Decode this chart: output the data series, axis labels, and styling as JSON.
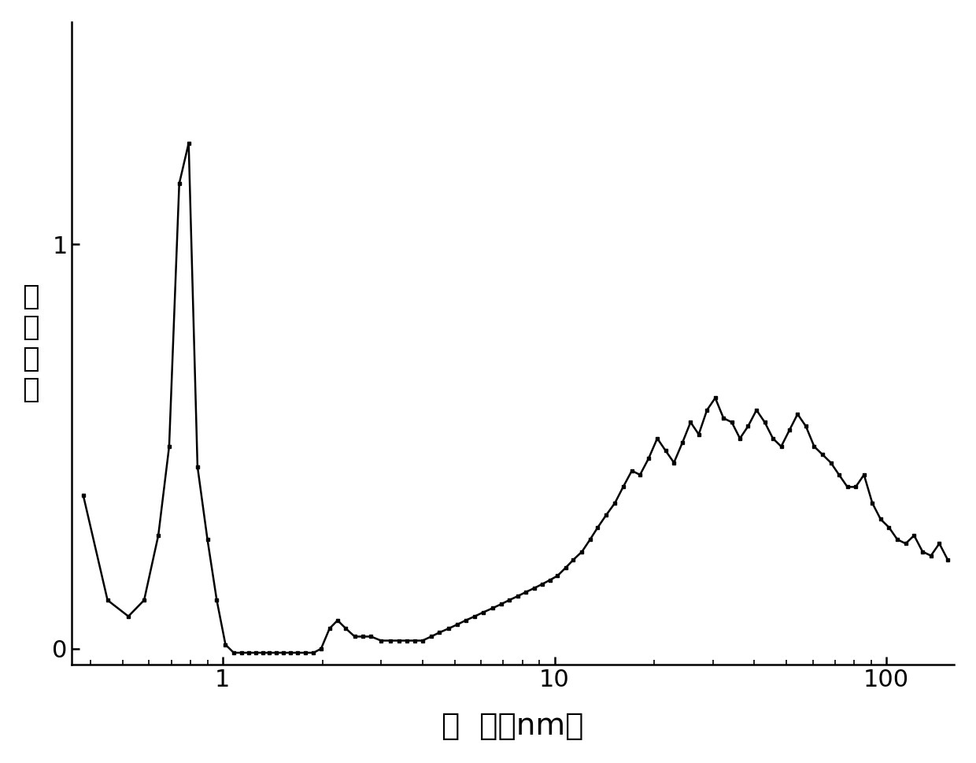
{
  "xlabel": "孔  径（nm）",
  "ylabel_chars": [
    "微",
    "分",
    "孔",
    "容"
  ],
  "line_color": "#000000",
  "marker": "s",
  "markersize": 3.5,
  "linewidth": 1.8,
  "background_color": "#ffffff",
  "xlim": [
    0.35,
    160
  ],
  "ylim": [
    -0.04,
    1.55
  ],
  "xlabel_fontsize": 28,
  "ylabel_fontsize": 26,
  "tick_fontsize": 22,
  "x": [
    0.38,
    0.45,
    0.52,
    0.58,
    0.64,
    0.69,
    0.74,
    0.79,
    0.84,
    0.9,
    0.96,
    1.02,
    1.08,
    1.14,
    1.2,
    1.26,
    1.32,
    1.38,
    1.45,
    1.52,
    1.6,
    1.68,
    1.78,
    1.88,
    1.98,
    2.1,
    2.22,
    2.35,
    2.5,
    2.65,
    2.8,
    3.0,
    3.2,
    3.4,
    3.6,
    3.8,
    4.0,
    4.25,
    4.5,
    4.8,
    5.1,
    5.4,
    5.75,
    6.1,
    6.5,
    6.9,
    7.3,
    7.75,
    8.2,
    8.7,
    9.2,
    9.7,
    10.2,
    10.8,
    11.4,
    12.1,
    12.8,
    13.5,
    14.3,
    15.2,
    16.1,
    17.1,
    18.1,
    19.2,
    20.4,
    21.6,
    22.9,
    24.3,
    25.7,
    27.2,
    28.8,
    30.5,
    32.3,
    34.2,
    36.2,
    38.3,
    40.6,
    43.0,
    45.5,
    48.2,
    51.0,
    54.0,
    57.2,
    60.6,
    64.2,
    68.0,
    72.0,
    76.3,
    80.8,
    85.6,
    90.7,
    96.1,
    101.8,
    107.9,
    114.3,
    121.2,
    128.5,
    136.2,
    144.4,
    153.0
  ],
  "y": [
    0.38,
    0.12,
    0.08,
    0.12,
    0.28,
    0.5,
    1.15,
    1.25,
    0.45,
    0.27,
    0.12,
    0.01,
    -0.01,
    -0.01,
    -0.01,
    -0.01,
    -0.01,
    -0.01,
    -0.01,
    -0.01,
    -0.01,
    -0.01,
    -0.01,
    -0.01,
    0.0,
    0.05,
    0.07,
    0.05,
    0.03,
    0.03,
    0.03,
    0.02,
    0.02,
    0.02,
    0.02,
    0.02,
    0.02,
    0.03,
    0.04,
    0.05,
    0.06,
    0.07,
    0.08,
    0.09,
    0.1,
    0.11,
    0.12,
    0.13,
    0.14,
    0.15,
    0.16,
    0.17,
    0.18,
    0.2,
    0.22,
    0.24,
    0.27,
    0.3,
    0.33,
    0.36,
    0.4,
    0.44,
    0.43,
    0.47,
    0.52,
    0.49,
    0.46,
    0.51,
    0.56,
    0.53,
    0.59,
    0.62,
    0.57,
    0.56,
    0.52,
    0.55,
    0.59,
    0.56,
    0.52,
    0.5,
    0.54,
    0.58,
    0.55,
    0.5,
    0.48,
    0.46,
    0.43,
    0.4,
    0.4,
    0.43,
    0.36,
    0.32,
    0.3,
    0.27,
    0.26,
    0.28,
    0.24,
    0.23,
    0.26,
    0.22
  ]
}
